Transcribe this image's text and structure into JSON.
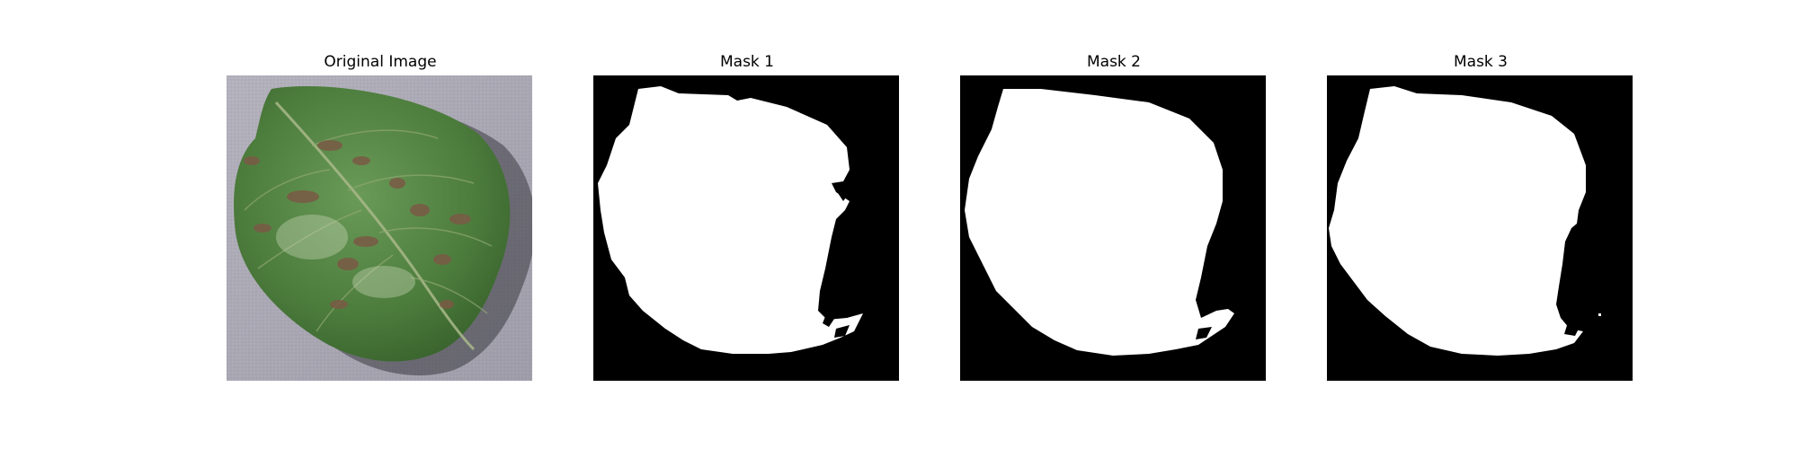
{
  "figure": {
    "panels": [
      {
        "id": "original",
        "title": "Original Image",
        "kind": "photo",
        "subject": "leaf-photo"
      },
      {
        "id": "mask1",
        "title": "Mask 1",
        "kind": "mask",
        "subject": "binary-mask"
      },
      {
        "id": "mask2",
        "title": "Mask 2",
        "kind": "mask",
        "subject": "binary-mask"
      },
      {
        "id": "mask3",
        "title": "Mask 3",
        "kind": "mask",
        "subject": "binary-mask"
      }
    ]
  },
  "colors": {
    "background": "#ffffff",
    "mask_foreground": "#ffffff",
    "mask_background": "#000000",
    "leaf_green": "#4f7f3f",
    "photo_surface": "#a9a7b2"
  }
}
